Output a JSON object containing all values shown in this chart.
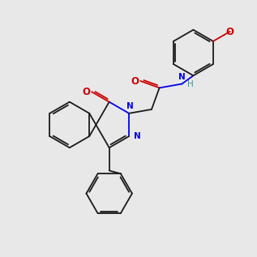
{
  "bg": "#e8e8e8",
  "bc": "#1a1a1a",
  "nc": "#0000ee",
  "oc": "#cc0000",
  "hc": "#4a9090",
  "lw": 1.3,
  "fs": 7.5,
  "bl": 1.0
}
